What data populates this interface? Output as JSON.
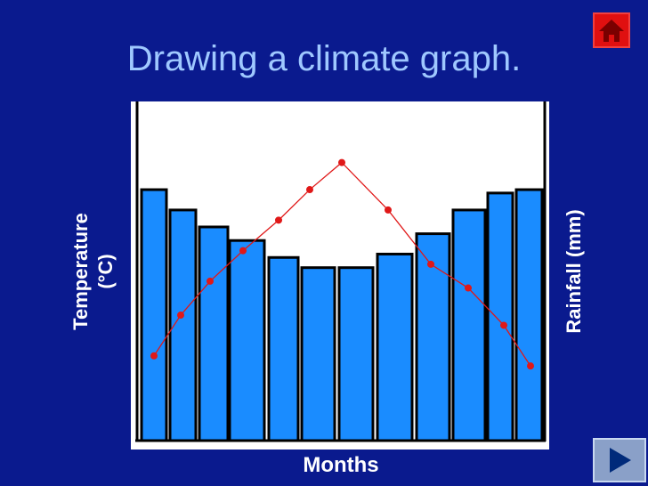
{
  "slide": {
    "title": "Drawing a climate graph.",
    "colors": {
      "background": "#0a1a8e",
      "title": "#9fc8ff"
    }
  },
  "nav": {
    "home_icon": "home-icon",
    "next_icon": "play-next-icon"
  },
  "chart_data": {
    "type": "bar",
    "categories": [
      "",
      "",
      "",
      "",
      "",
      "",
      "",
      "",
      "",
      "",
      "",
      ""
    ],
    "xlabel": "Months",
    "ylabel_left": [
      "Temperature",
      "(°C)"
    ],
    "ylabel_right": "Rainfall (mm)",
    "grid": false,
    "ylim": [
      0,
      100
    ],
    "series": [
      {
        "type": "bar",
        "axis": "right",
        "color": "#1a8cff",
        "values": [
          74,
          68,
          63,
          59,
          54,
          51,
          51,
          55,
          61,
          68,
          73,
          74
        ]
      },
      {
        "type": "line",
        "axis": "left",
        "color": "#e01818",
        "values": [
          25,
          37,
          47,
          56,
          65,
          74,
          82,
          68,
          52,
          45,
          34,
          22
        ]
      }
    ]
  }
}
